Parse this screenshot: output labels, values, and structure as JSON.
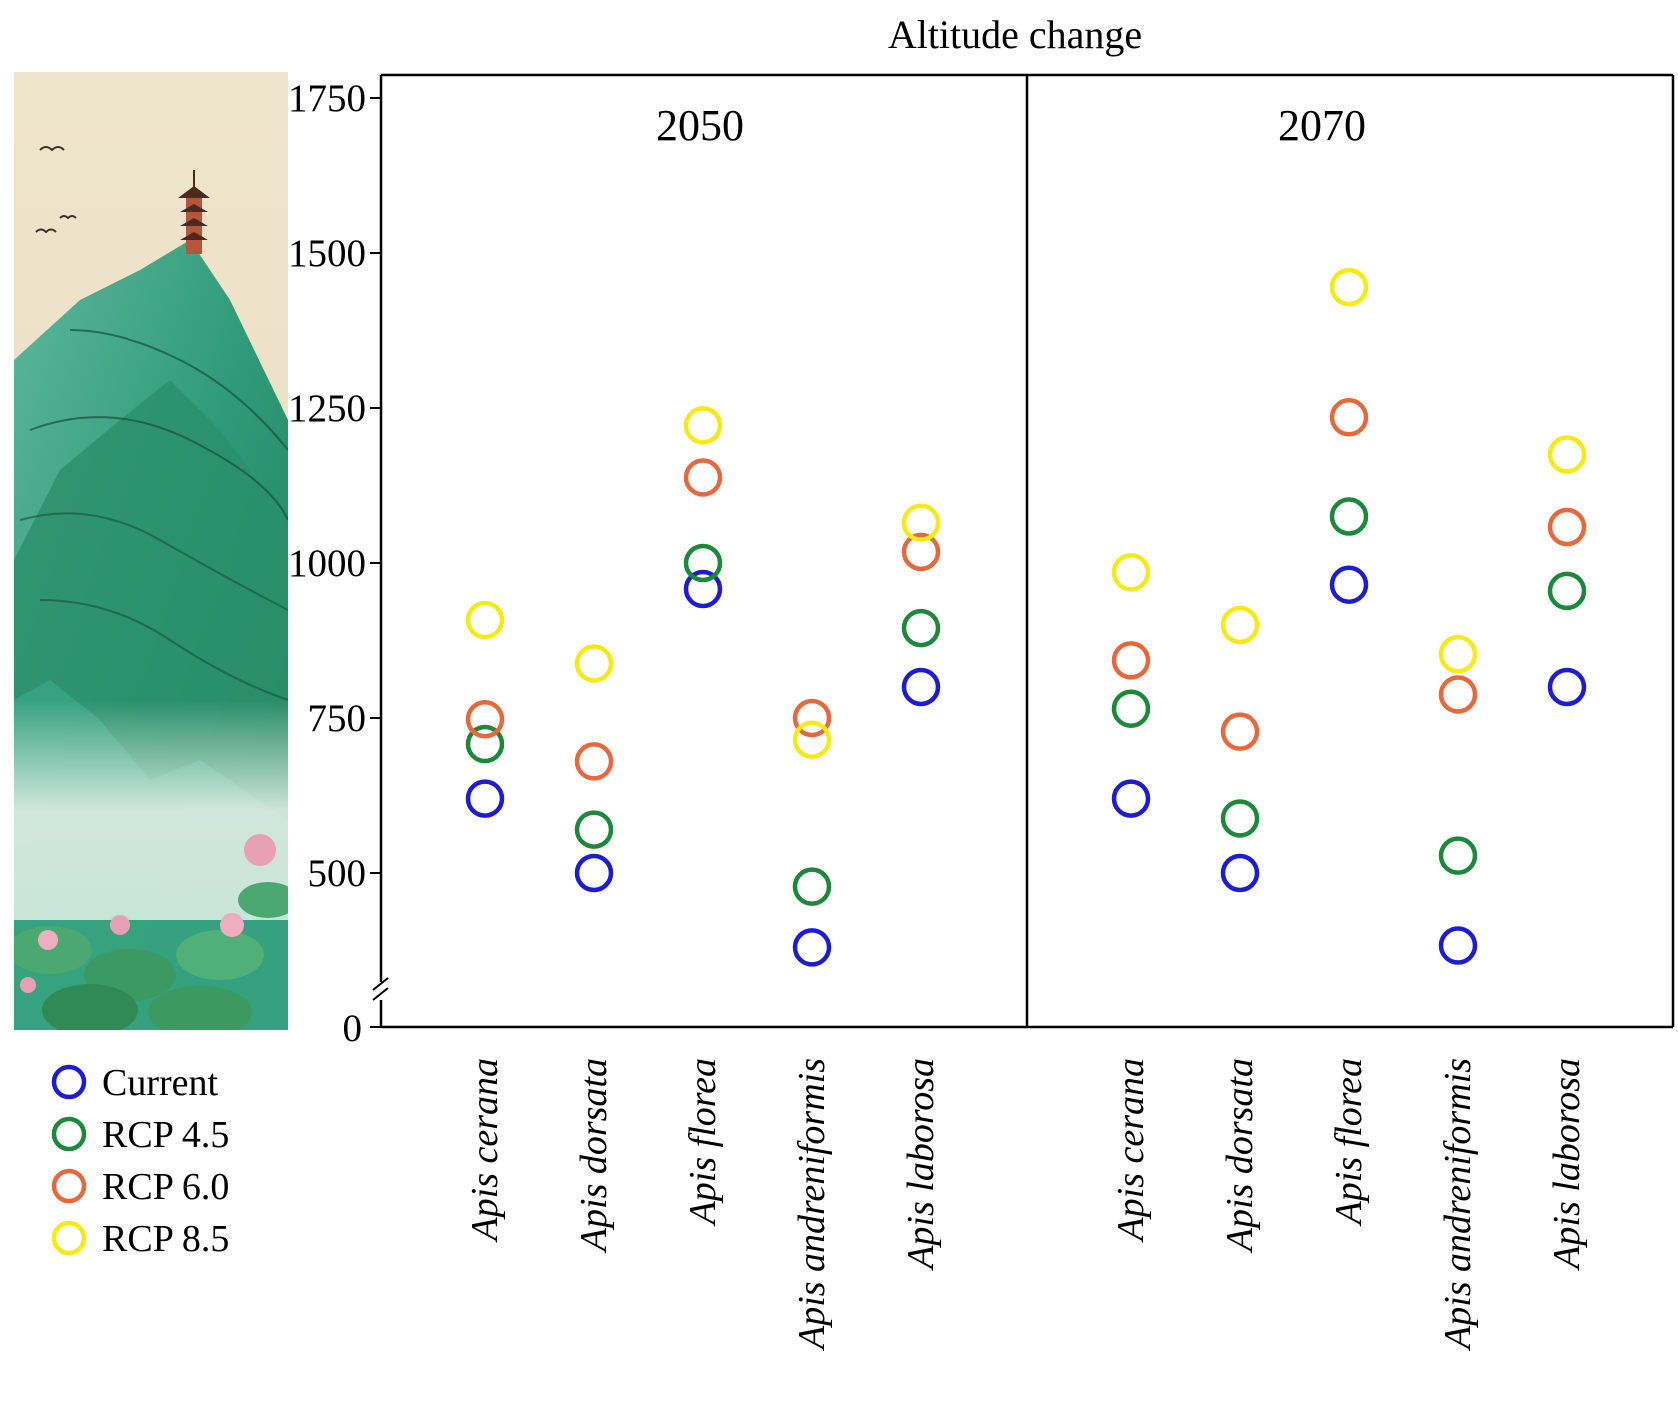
{
  "chart_data": {
    "type": "scatter",
    "title": "Altitude change",
    "ylabel": "",
    "ylim": [
      300,
      1750
    ],
    "y_axis_break": true,
    "yticks": [
      {
        "value": 500,
        "label": "500"
      },
      {
        "value": 750,
        "label": "750"
      },
      {
        "value": 1000,
        "label": "1000"
      },
      {
        "value": 1250,
        "label": "1250"
      },
      {
        "value": 1500,
        "label": "1500"
      },
      {
        "value": 1750,
        "label": "1750"
      }
    ],
    "zero_label": "0",
    "categories": [
      "Apis cerana",
      "Apis dorsata",
      "Apis florea",
      "Apis andreniformis",
      "Apis laborosa"
    ],
    "legend_position": "bottom-left",
    "series_styles": [
      {
        "name": "Current",
        "color": "#1c1cd6"
      },
      {
        "name": "RCP 4.5",
        "color": "#1a8a3a"
      },
      {
        "name": "RCP 6.0",
        "color": "#e8683c"
      },
      {
        "name": "RCP 8.5",
        "color": "#f7ea13"
      }
    ],
    "panels": [
      {
        "label": "2050",
        "series": [
          {
            "name": "Current",
            "values": [
              620,
              500,
              958,
              380,
              800
            ]
          },
          {
            "name": "RCP 4.5",
            "values": [
              708,
              570,
              1000,
              478,
              895
            ]
          },
          {
            "name": "RCP 6.0",
            "values": [
              748,
              680,
              1138,
              750,
              1018
            ]
          },
          {
            "name": "RCP 8.5",
            "values": [
              908,
              838,
              1222,
              715,
              1065
            ]
          }
        ]
      },
      {
        "label": "2070",
        "series": [
          {
            "name": "Current",
            "values": [
              620,
              500,
              965,
              383,
              800
            ]
          },
          {
            "name": "RCP 4.5",
            "values": [
              765,
              588,
              1075,
              528,
              955
            ]
          },
          {
            "name": "RCP 6.0",
            "values": [
              843,
              728,
              1235,
              788,
              1058
            ]
          },
          {
            "name": "RCP 8.5",
            "values": [
              985,
              900,
              1445,
              853,
              1175
            ]
          }
        ]
      }
    ]
  },
  "illustration": {
    "name": "Chinese landscape painting with pagoda, green mountains and lotus pond"
  }
}
